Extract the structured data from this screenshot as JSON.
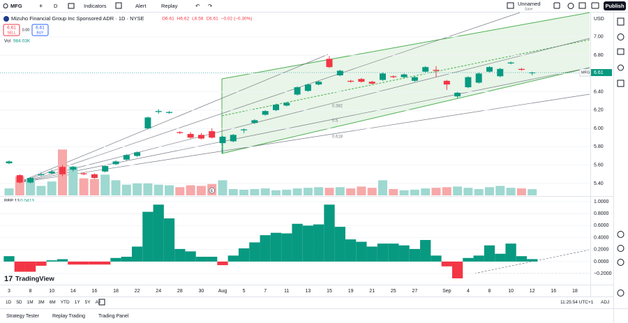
{
  "toolbar": {
    "symbol": "MFG",
    "interval": "D",
    "indicators": "Indicators",
    "alert": "Alert",
    "replay": "Replay",
    "layout_name": "Unnamed",
    "layout_status": "Save",
    "publish": "Publish"
  },
  "drawings": {
    "fib_levels": [
      "0.382",
      "0.5",
      "0.618"
    ],
    "earnings_marker": "E"
  },
  "logo": "TradingView",
  "bottom_bar": {
    "ranges": [
      "1D",
      "5D",
      "1M",
      "3M",
      "6M",
      "YTD",
      "1Y",
      "5Y",
      "All"
    ],
    "time": "11:25:54 UTC+1",
    "adj": "ADJ"
  },
  "footer": {
    "tabs": [
      "Strategy Tester",
      "Replay Trading",
      "Trading Panel"
    ]
  },
  "chart_data": [
    {
      "type": "candlestick",
      "title": "Mizuho Financial Group Inc Sponsored ADR · 1D · NYSE",
      "ohlc_text": [
        "O6.61",
        "H6.62",
        "L6.58",
        "C6.61",
        "−0.02 (−0.30%)"
      ],
      "volume_label": "Vol",
      "volume_value": "984.03K",
      "sell_price": "6.61",
      "sell": "SELL",
      "spread": "0.00",
      "buy_price": "6.61",
      "buy": "BUY",
      "currency": "USD",
      "last_label": "MFG",
      "categories": [
        "3",
        null,
        "8",
        null,
        "10",
        null,
        "14",
        null,
        "16",
        null,
        "18",
        null,
        "22",
        null,
        "24",
        null,
        "28",
        null,
        "30",
        null,
        "Aug",
        null,
        "5",
        null,
        "7",
        null,
        "11",
        null,
        "13",
        null,
        "15",
        null,
        "19",
        null,
        "21",
        null,
        "25",
        null,
        "27",
        null,
        null,
        "Sep",
        null,
        "4",
        null,
        "8",
        null,
        "10",
        null,
        "12",
        null,
        "16",
        null,
        "18",
        null
      ],
      "ohlc": [
        [
          5.62,
          5.65,
          5.61,
          5.64
        ],
        [
          5.49,
          5.5,
          5.4,
          5.41
        ],
        [
          5.41,
          5.47,
          5.4,
          5.46
        ],
        [
          5.49,
          5.52,
          5.48,
          5.5
        ],
        [
          5.51,
          5.55,
          5.5,
          5.53
        ],
        [
          5.58,
          5.6,
          5.48,
          5.5
        ],
        [
          5.55,
          5.59,
          5.53,
          5.58
        ],
        [
          5.51,
          5.52,
          5.49,
          5.5
        ],
        [
          5.5,
          5.51,
          5.45,
          5.46
        ],
        [
          5.53,
          5.6,
          5.52,
          5.59
        ],
        [
          5.61,
          5.65,
          5.6,
          5.64
        ],
        [
          5.66,
          5.72,
          5.65,
          5.71
        ],
        [
          5.7,
          5.75,
          5.69,
          5.74
        ],
        [
          6.0,
          6.13,
          5.99,
          6.12
        ],
        [
          6.18,
          6.21,
          6.16,
          6.19
        ],
        [
          6.17,
          6.19,
          6.16,
          6.18
        ],
        [
          5.96,
          5.97,
          5.94,
          5.95
        ],
        [
          5.94,
          5.96,
          5.89,
          5.9
        ],
        [
          5.93,
          5.95,
          5.88,
          5.89
        ],
        [
          5.97,
          6.0,
          5.89,
          5.9
        ],
        [
          5.84,
          5.92,
          5.73,
          5.91
        ],
        [
          5.86,
          5.94,
          5.85,
          5.93
        ],
        [
          5.98,
          6.0,
          5.95,
          5.99
        ],
        [
          6.06,
          6.1,
          6.05,
          6.09
        ],
        [
          6.15,
          6.2,
          6.14,
          6.19
        ],
        [
          6.2,
          6.27,
          6.19,
          6.26
        ],
        [
          6.25,
          6.29,
          6.24,
          6.28
        ],
        [
          6.37,
          6.46,
          6.36,
          6.45
        ],
        [
          6.41,
          6.49,
          6.4,
          6.48
        ],
        [
          6.48,
          6.52,
          6.47,
          6.51
        ],
        [
          6.76,
          6.79,
          6.66,
          6.67
        ],
        [
          6.58,
          6.64,
          6.57,
          6.63
        ],
        [
          6.52,
          6.53,
          6.5,
          6.51
        ],
        [
          6.54,
          6.55,
          6.5,
          6.51
        ],
        [
          6.51,
          6.52,
          6.48,
          6.49
        ],
        [
          6.53,
          6.61,
          6.52,
          6.6
        ],
        [
          6.57,
          6.58,
          6.55,
          6.56
        ],
        [
          6.56,
          6.6,
          6.55,
          6.59
        ],
        [
          6.52,
          6.57,
          6.51,
          6.56
        ],
        [
          6.62,
          6.68,
          6.61,
          6.67
        ],
        [
          6.64,
          6.68,
          6.56,
          6.63
        ],
        [
          6.52,
          6.53,
          6.42,
          6.48
        ],
        [
          6.35,
          6.4,
          6.33,
          6.39
        ],
        [
          6.45,
          6.57,
          6.44,
          6.56
        ],
        [
          6.5,
          6.61,
          6.49,
          6.6
        ],
        [
          6.62,
          6.68,
          6.61,
          6.67
        ],
        [
          6.57,
          6.66,
          6.56,
          6.65
        ],
        [
          6.71,
          6.73,
          6.7,
          6.72
        ],
        [
          6.65,
          6.66,
          6.63,
          6.64
        ],
        [
          6.61,
          6.62,
          6.58,
          6.61
        ],
        null,
        null,
        null,
        null,
        null
      ],
      "volume": [
        1100000,
        3000000,
        2600000,
        1500000,
        2200000,
        7300000,
        4600000,
        2700000,
        2600000,
        3300000,
        2400000,
        1700000,
        1900000,
        1900000,
        1700000,
        1600000,
        1300000,
        1600000,
        1500000,
        1800000,
        2400000,
        1000000,
        900000,
        1000000,
        1100000,
        800000,
        900000,
        1100000,
        1200000,
        1300000,
        1200000,
        1300000,
        1100000,
        1400000,
        1200000,
        2400000,
        1000000,
        800000,
        900000,
        1100000,
        1200000,
        1300000,
        1400000,
        1200000,
        1000000,
        1300000,
        1500000,
        1200000,
        1100000,
        984030,
        null,
        null,
        null,
        null,
        null
      ],
      "vlim": [
        0,
        8000000
      ],
      "up_color": "#089981",
      "down_color": "#f23645",
      "volume_up_color": "#9ed8d0",
      "volume_down_color": "#f7a8a8",
      "ylim": [
        5.27,
        7.25
      ],
      "yticks": [
        {
          "value": 5.4,
          "label": "5.40"
        },
        {
          "value": 5.6,
          "label": "5.60"
        },
        {
          "value": 5.8,
          "label": "5.80"
        },
        {
          "value": 6.0,
          "label": "6.00"
        },
        {
          "value": 6.2,
          "label": "6.20"
        },
        {
          "value": 6.4,
          "label": "6.40"
        },
        {
          "value": 6.6,
          "label": "6.60"
        },
        {
          "value": 6.8,
          "label": "6.80"
        },
        {
          "value": 7.0,
          "label": "7.00"
        }
      ],
      "grid": true
    },
    {
      "type": "bar",
      "title": "BBP 13",
      "values": [
        0.09,
        -0.17,
        -0.17,
        -0.07,
        0.02,
        0.04,
        -0.05,
        -0.05,
        -0.05,
        -0.05,
        0.06,
        0.08,
        0.25,
        0.83,
        0.95,
        0.72,
        0.21,
        0.17,
        0.08,
        0.08,
        -0.06,
        0.1,
        0.22,
        0.32,
        0.44,
        0.48,
        0.47,
        0.63,
        0.6,
        0.62,
        0.95,
        0.58,
        0.37,
        0.33,
        0.25,
        0.3,
        0.3,
        0.27,
        0.21,
        0.36,
        0.1,
        -0.08,
        -0.28,
        0.06,
        0.1,
        0.27,
        0.13,
        0.3,
        0.09,
        0.0413,
        null,
        null,
        null,
        null,
        null
      ],
      "up_color": "#089981",
      "down_color": "#f23645",
      "ylim": [
        -0.35,
        1.07
      ],
      "yticks": [
        {
          "value": -0.2,
          "label": "−0.2000"
        },
        {
          "value": 0,
          "label": "0.0000"
        },
        {
          "value": 0.2,
          "label": "0.2000"
        },
        {
          "value": 0.4,
          "label": "0.4000"
        },
        {
          "value": 0.6,
          "label": "0.6000"
        },
        {
          "value": 0.8,
          "label": "0.8000"
        },
        {
          "value": 1,
          "label": "1.0000"
        }
      ],
      "grid": true
    }
  ]
}
